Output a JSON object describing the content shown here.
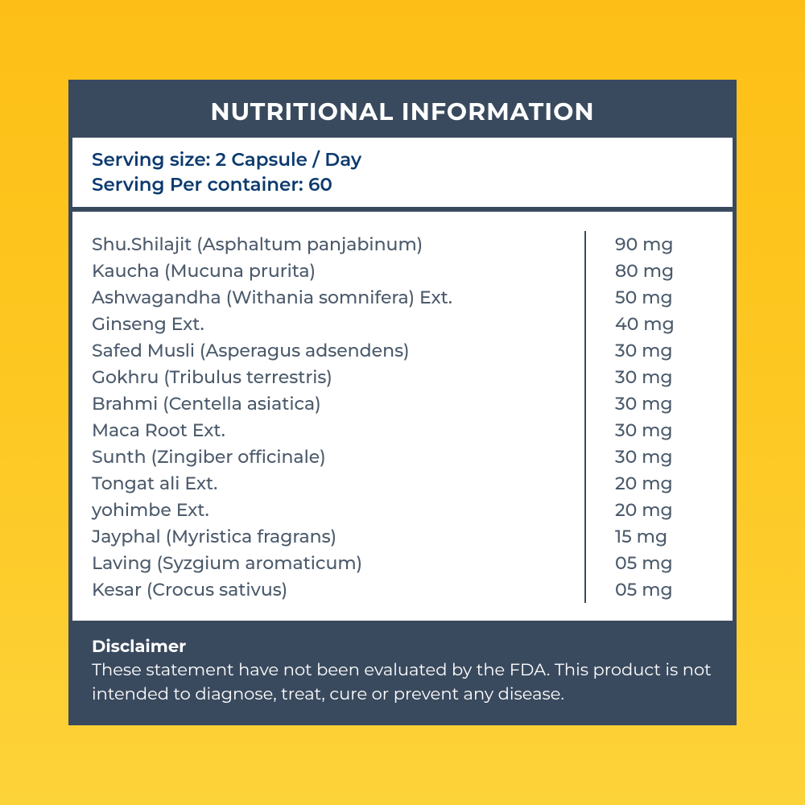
{
  "title": "NUTRITIONAL INFORMATION",
  "serving": {
    "line1": "Serving size: 2 Capsule / Day",
    "line2": "Serving Per container: 60"
  },
  "ingredients": [
    {
      "name": "Shu.Shilajit (Asphaltum panjabinum)",
      "amount": "90 mg"
    },
    {
      "name": "Kaucha (Mucuna prurita)",
      "amount": "80 mg"
    },
    {
      "name": "Ashwagandha (Withania somnifera) Ext.",
      "amount": "50 mg"
    },
    {
      "name": "Ginseng Ext.",
      "amount": "40 mg"
    },
    {
      "name": "Safed Musli (Asperagus adsendens)",
      "amount": "30 mg"
    },
    {
      "name": "Gokhru (Tribulus terrestris)",
      "amount": "30 mg"
    },
    {
      "name": "Brahmi (Centella asiatica)",
      "amount": "30 mg"
    },
    {
      "name": "Maca Root Ext.",
      "amount": "30 mg"
    },
    {
      "name": "Sunth (Zingiber officinale)",
      "amount": "30 mg"
    },
    {
      "name": "Tongat ali Ext.",
      "amount": "20 mg"
    },
    {
      "name": "yohimbe Ext.",
      "amount": "20 mg"
    },
    {
      "name": "Jayphal (Myristica fragrans)",
      "amount": "15 mg"
    },
    {
      "name": "Laving (Syzgium aromaticum)",
      "amount": "05 mg"
    },
    {
      "name": "Kesar (Crocus sativus)",
      "amount": "05 mg"
    }
  ],
  "disclaimer": {
    "title": "Disclaimer",
    "text": "These statement have not been evaluated by the FDA. This product is not intended to diagnose, treat, cure or prevent any disease."
  },
  "colors": {
    "panel_bg": "#3a4a5e",
    "text_primary": "#4b5a6b",
    "serving_text": "#0c3a6e",
    "white": "#ffffff"
  }
}
